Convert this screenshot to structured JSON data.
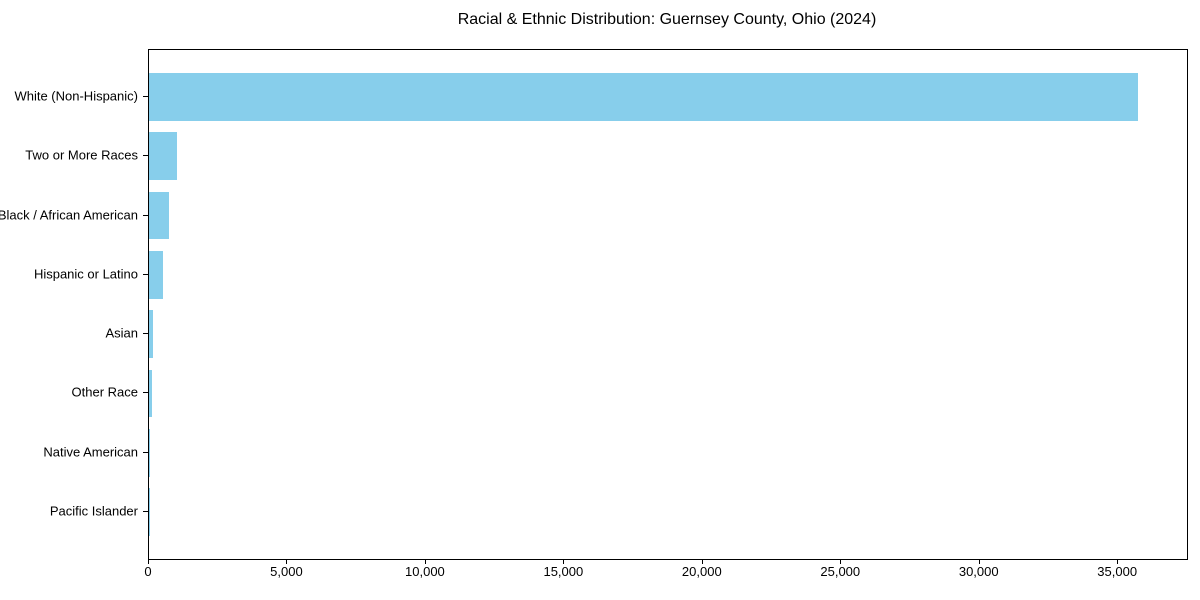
{
  "chart_data": {
    "type": "bar",
    "orientation": "horizontal",
    "title": "Racial & Ethnic Distribution: Guernsey County, Ohio (2024)",
    "categories": [
      "White (Non-Hispanic)",
      "Two or More Races",
      "Black / African American",
      "Hispanic or Latino",
      "Asian",
      "Other Race",
      "Native American",
      "Pacific Islander"
    ],
    "values": [
      35700,
      1020,
      720,
      500,
      130,
      120,
      40,
      10
    ],
    "xlabel": "",
    "ylabel": "",
    "xlim": [
      0,
      37485
    ],
    "xticks": [
      {
        "value": 0,
        "label": "0"
      },
      {
        "value": 5000,
        "label": "5,000"
      },
      {
        "value": 10000,
        "label": "10,000"
      },
      {
        "value": 15000,
        "label": "15,000"
      },
      {
        "value": 20000,
        "label": "20,000"
      },
      {
        "value": 25000,
        "label": "25,000"
      },
      {
        "value": 30000,
        "label": "30,000"
      },
      {
        "value": 35000,
        "label": "35,000"
      }
    ],
    "bar_color": "#87CEEB",
    "axis_color": "#000000",
    "text_color": "#000000",
    "background_color": "#FFFFFF",
    "grid": false,
    "legend_position": "none",
    "bar_height_fraction": 0.8
  }
}
